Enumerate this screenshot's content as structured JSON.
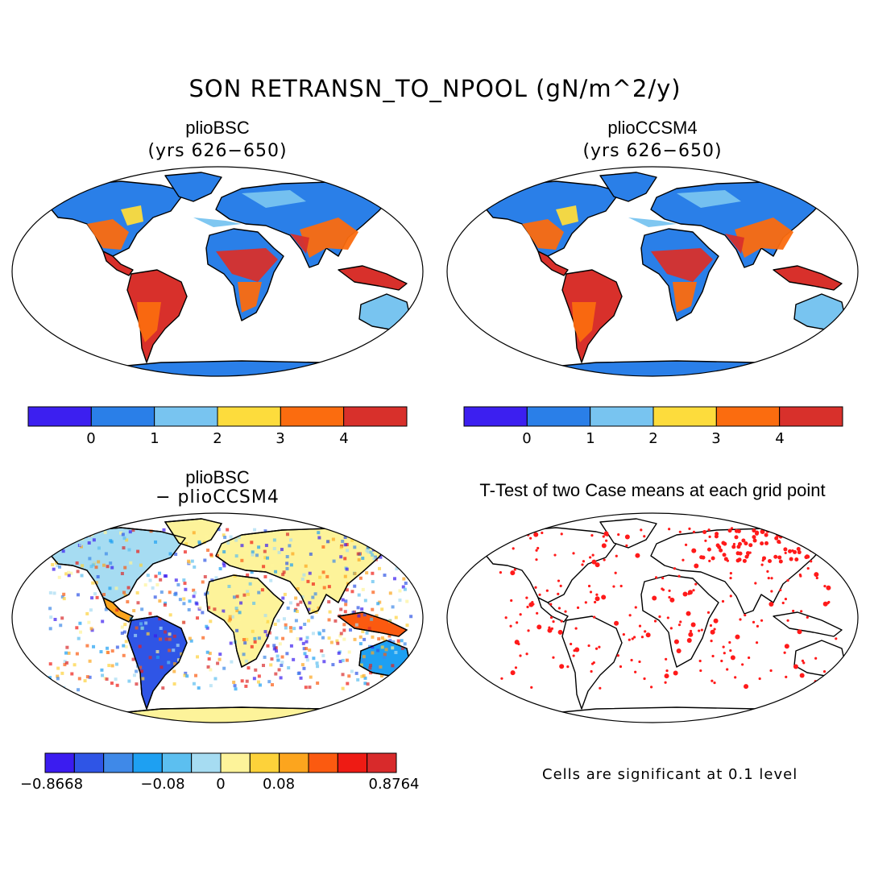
{
  "title": "SON RETRANSN_TO_NPOOL (gN/m^2/y)",
  "panels": [
    {
      "name": "plioBSC",
      "subtitle": "(yrs 626−650)"
    },
    {
      "name": "plioCCSM4",
      "subtitle": "(yrs 626−650)"
    },
    {
      "name": "plioBSC",
      "subtitle": "− plioCCSM4"
    },
    {
      "name": "T-Test of two Case means at each grid point"
    }
  ],
  "colorbar_top": {
    "colors": [
      "#3c1ff0",
      "#2a7fe8",
      "#78c4f0",
      "#fddc3c",
      "#fb6c0f",
      "#d8302b"
    ],
    "labels": [
      "0",
      "1",
      "2",
      "3",
      "4"
    ]
  },
  "colorbar_diff": {
    "colors": [
      "#3b1cf0",
      "#2f55e6",
      "#3f89e8",
      "#1ea0f2",
      "#5cbff0",
      "#a6dcf2",
      "#fdf39a",
      "#fdd23a",
      "#fca51e",
      "#fb5a10",
      "#ee1b14",
      "#d82a2b"
    ],
    "labels": [
      "−0.8668",
      "−0.08",
      "0",
      "0.08",
      "0.8764"
    ]
  },
  "note": "Cells are significant at 0.1 level"
}
